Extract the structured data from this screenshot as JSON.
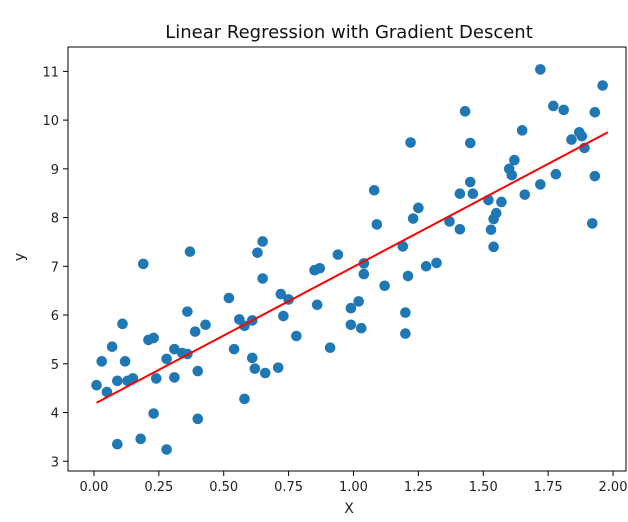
{
  "chart_data": {
    "type": "scatter",
    "title": "Linear Regression with Gradient Descent",
    "xlabel": "X",
    "ylabel": "y",
    "xlim": [
      -0.1,
      2.05
    ],
    "ylim": [
      2.8,
      11.5
    ],
    "grid": false,
    "xticks": [
      0.0,
      0.25,
      0.5,
      0.75,
      1.0,
      1.25,
      1.5,
      1.75,
      2.0
    ],
    "xtick_labels": [
      "0.00",
      "0.25",
      "0.50",
      "0.75",
      "1.00",
      "1.25",
      "1.50",
      "1.75",
      "2.00"
    ],
    "yticks": [
      3,
      4,
      5,
      6,
      7,
      8,
      9,
      10,
      11
    ],
    "ytick_labels": [
      "3",
      "4",
      "5",
      "6",
      "7",
      "8",
      "9",
      "10",
      "11"
    ],
    "point_color": "#1f77b4",
    "line_color": "#ff0000",
    "series": [
      {
        "type": "scatter",
        "points": [
          [
            0.01,
            4.56
          ],
          [
            0.03,
            5.05
          ],
          [
            0.05,
            4.42
          ],
          [
            0.07,
            5.35
          ],
          [
            0.09,
            3.35
          ],
          [
            0.09,
            4.65
          ],
          [
            0.11,
            5.82
          ],
          [
            0.12,
            5.05
          ],
          [
            0.13,
            4.65
          ],
          [
            0.15,
            4.7
          ],
          [
            0.18,
            3.46
          ],
          [
            0.19,
            7.05
          ],
          [
            0.21,
            5.49
          ],
          [
            0.23,
            3.98
          ],
          [
            0.23,
            5.53
          ],
          [
            0.24,
            4.7
          ],
          [
            0.28,
            3.24
          ],
          [
            0.28,
            5.1
          ],
          [
            0.31,
            4.72
          ],
          [
            0.31,
            5.3
          ],
          [
            0.34,
            5.22
          ],
          [
            0.36,
            5.2
          ],
          [
            0.36,
            6.07
          ],
          [
            0.37,
            7.3
          ],
          [
            0.39,
            5.66
          ],
          [
            0.4,
            3.87
          ],
          [
            0.4,
            4.85
          ],
          [
            0.43,
            5.8
          ],
          [
            0.52,
            6.35
          ],
          [
            0.54,
            5.3
          ],
          [
            0.56,
            5.91
          ],
          [
            0.58,
            4.28
          ],
          [
            0.58,
            5.78
          ],
          [
            0.61,
            5.89
          ],
          [
            0.61,
            5.12
          ],
          [
            0.62,
            4.9
          ],
          [
            0.63,
            7.28
          ],
          [
            0.65,
            6.75
          ],
          [
            0.65,
            7.51
          ],
          [
            0.66,
            4.81
          ],
          [
            0.71,
            4.92
          ],
          [
            0.72,
            6.43
          ],
          [
            0.73,
            5.98
          ],
          [
            0.75,
            6.32
          ],
          [
            0.78,
            5.57
          ],
          [
            0.85,
            6.92
          ],
          [
            0.86,
            6.21
          ],
          [
            0.87,
            6.96
          ],
          [
            0.91,
            5.33
          ],
          [
            0.94,
            7.24
          ],
          [
            0.99,
            6.14
          ],
          [
            0.99,
            5.8
          ],
          [
            1.02,
            6.28
          ],
          [
            1.03,
            5.73
          ],
          [
            1.04,
            6.84
          ],
          [
            1.04,
            7.06
          ],
          [
            1.08,
            8.56
          ],
          [
            1.09,
            7.86
          ],
          [
            1.12,
            6.6
          ],
          [
            1.19,
            7.41
          ],
          [
            1.2,
            5.62
          ],
          [
            1.2,
            6.05
          ],
          [
            1.21,
            6.8
          ],
          [
            1.22,
            9.54
          ],
          [
            1.23,
            7.98
          ],
          [
            1.25,
            8.2
          ],
          [
            1.28,
            7.0
          ],
          [
            1.32,
            7.07
          ],
          [
            1.37,
            7.92
          ],
          [
            1.41,
            7.76
          ],
          [
            1.41,
            8.49
          ],
          [
            1.43,
            10.18
          ],
          [
            1.45,
            9.53
          ],
          [
            1.45,
            8.73
          ],
          [
            1.46,
            8.49
          ],
          [
            1.52,
            8.36
          ],
          [
            1.53,
            7.75
          ],
          [
            1.54,
            7.4
          ],
          [
            1.54,
            7.97
          ],
          [
            1.55,
            8.09
          ],
          [
            1.57,
            8.32
          ],
          [
            1.6,
            9.0
          ],
          [
            1.61,
            8.87
          ],
          [
            1.62,
            9.18
          ],
          [
            1.65,
            9.79
          ],
          [
            1.66,
            8.47
          ],
          [
            1.72,
            11.04
          ],
          [
            1.72,
            8.68
          ],
          [
            1.77,
            10.29
          ],
          [
            1.78,
            8.89
          ],
          [
            1.81,
            10.21
          ],
          [
            1.84,
            9.6
          ],
          [
            1.87,
            9.75
          ],
          [
            1.88,
            9.67
          ],
          [
            1.89,
            9.43
          ],
          [
            1.92,
            7.88
          ],
          [
            1.93,
            8.85
          ],
          [
            1.93,
            10.16
          ],
          [
            1.96,
            10.71
          ]
        ]
      },
      {
        "type": "line",
        "points": [
          [
            0.01,
            4.2
          ],
          [
            1.98,
            9.75
          ]
        ]
      }
    ]
  }
}
